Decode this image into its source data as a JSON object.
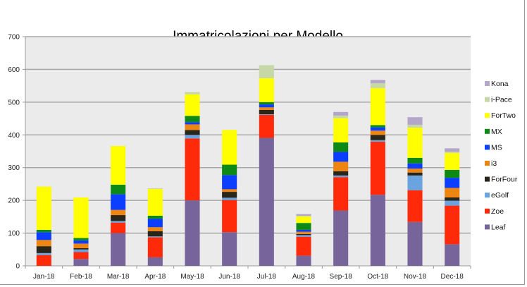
{
  "chart_data": {
    "type": "bar",
    "stacked": true,
    "title": "Immatricolazioni per Modello",
    "xlabel": "",
    "ylabel": "",
    "ylim": [
      0,
      700
    ],
    "yticks": [
      0,
      100,
      200,
      300,
      400,
      500,
      600,
      700
    ],
    "grid": true,
    "legend_position": "right",
    "categories": [
      "Jan-18",
      "Feb-18",
      "Mar-18",
      "Apr-18",
      "May-18",
      "Jun-18",
      "Jul-18",
      "Aug-18",
      "Sep-18",
      "Oct-18",
      "Nov-18",
      "Dec-18"
    ],
    "series": [
      {
        "name": "Leaf",
        "color": "#77649A",
        "values": [
          0,
          21,
          100,
          26,
          200,
          103,
          391,
          31,
          169,
          217,
          134,
          66
        ]
      },
      {
        "name": "Zoe",
        "color": "#FF2A0A",
        "values": [
          33,
          21,
          32,
          61,
          189,
          98,
          70,
          58,
          102,
          162,
          97,
          118
        ]
      },
      {
        "name": "eGolf",
        "color": "#6AA4E0",
        "values": [
          6,
          8,
          5,
          3,
          11,
          7,
          2,
          5,
          5,
          5,
          45,
          15
        ]
      },
      {
        "name": "ForFour",
        "color": "#2A2519",
        "values": [
          21,
          4,
          18,
          16,
          15,
          18,
          13,
          3,
          13,
          16,
          9,
          10
        ]
      },
      {
        "name": "i3",
        "color": "#EE8511",
        "values": [
          19,
          14,
          16,
          12,
          17,
          8,
          8,
          7,
          29,
          13,
          12,
          29
        ]
      },
      {
        "name": "MS",
        "color": "#0B3EFF",
        "values": [
          24,
          10,
          48,
          26,
          7,
          43,
          9,
          6,
          30,
          10,
          16,
          31
        ]
      },
      {
        "name": "MX",
        "color": "#0D8A15",
        "values": [
          7,
          7,
          29,
          9,
          19,
          32,
          7,
          21,
          29,
          7,
          17,
          24
        ]
      },
      {
        "name": "ForTwo",
        "color": "#FFFF00",
        "values": [
          132,
          124,
          118,
          82,
          66,
          106,
          73,
          20,
          74,
          113,
          92,
          52
        ]
      },
      {
        "name": "i-Pace",
        "color": "#C7D8A8",
        "values": [
          0,
          0,
          0,
          2,
          7,
          0,
          40,
          2,
          8,
          15,
          9,
          3
        ]
      },
      {
        "name": "Kona",
        "color": "#B3A6C9",
        "values": [
          0,
          0,
          0,
          0,
          0,
          0,
          0,
          5,
          11,
          10,
          23,
          11
        ]
      }
    ]
  }
}
